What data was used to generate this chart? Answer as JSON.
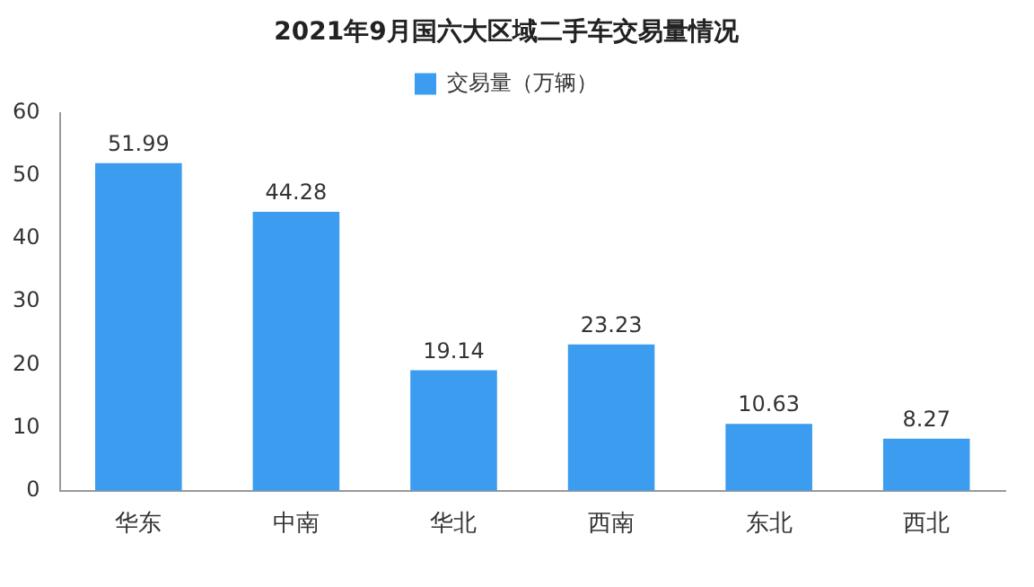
{
  "chart_data": {
    "type": "bar",
    "title": "2021年9月国六大区域二手车交易量情况",
    "categories": [
      "华东",
      "中南",
      "华北",
      "西南",
      "东北",
      "西北"
    ],
    "series": [
      {
        "name": "交易量（万辆）",
        "color": "#3b9cf0",
        "values": [
          51.99,
          44.28,
          19.14,
          23.23,
          10.63,
          8.27
        ]
      }
    ],
    "ylim": [
      0,
      60
    ],
    "yticks": [
      0,
      10,
      20,
      30,
      40,
      50,
      60
    ],
    "grid": false,
    "legend": "top",
    "data_labels": true
  }
}
